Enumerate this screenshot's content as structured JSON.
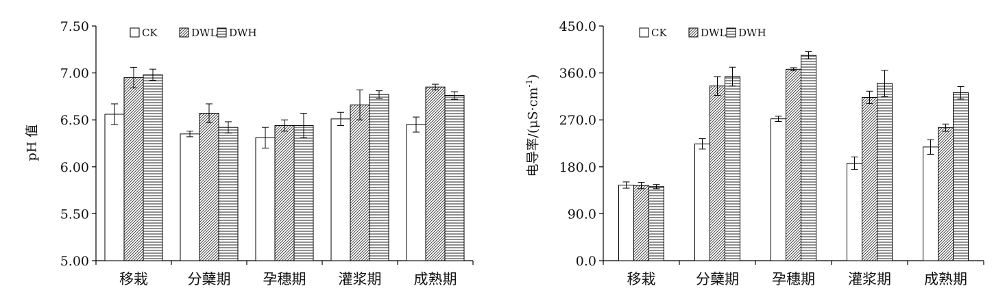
{
  "chart_data": [
    {
      "type": "bar",
      "ylabel": "pH 值",
      "ylim": [
        5.0,
        7.5
      ],
      "yticks": [
        "5.00",
        "5.50",
        "6.00",
        "6.50",
        "7.00",
        "7.50"
      ],
      "ytick_values": [
        5.0,
        5.5,
        6.0,
        6.5,
        7.0,
        7.5
      ],
      "categories": [
        "移栽",
        "分蘖期",
        "孕穗期",
        "灌浆期",
        "成熟期"
      ],
      "legend_position": "top-left",
      "grid": false,
      "series": [
        {
          "name": "CK",
          "pattern": "blank",
          "values": [
            6.56,
            6.35,
            6.31,
            6.51,
            6.45
          ],
          "errors": [
            0.11,
            0.03,
            0.11,
            0.07,
            0.08
          ]
        },
        {
          "name": "DWL",
          "pattern": "diagonal",
          "values": [
            6.95,
            6.57,
            6.44,
            6.66,
            6.85
          ],
          "errors": [
            0.11,
            0.1,
            0.06,
            0.16,
            0.03
          ]
        },
        {
          "name": "DWH",
          "pattern": "horizontal",
          "values": [
            6.98,
            6.42,
            6.44,
            6.77,
            6.76
          ],
          "errors": [
            0.06,
            0.06,
            0.13,
            0.04,
            0.04
          ]
        }
      ]
    },
    {
      "type": "bar",
      "ylabel": "电导率/(μS·cm",
      "ylabel_sup": "-1",
      "ylabel_close": ")",
      "ylim": [
        0,
        450
      ],
      "yticks": [
        "0.0",
        "90.0",
        "180.0",
        "270.0",
        "360.0",
        "450.0"
      ],
      "ytick_values": [
        0,
        90,
        180,
        270,
        360,
        450
      ],
      "categories": [
        "移栽",
        "分蘖期",
        "孕穗期",
        "灌浆期",
        "成熟期"
      ],
      "legend_position": "top-left",
      "grid": false,
      "series": [
        {
          "name": "CK",
          "pattern": "blank",
          "values": [
            145,
            224,
            272,
            187,
            218
          ],
          "errors": [
            6,
            10,
            5,
            12,
            14
          ]
        },
        {
          "name": "DWL",
          "pattern": "diagonal",
          "values": [
            144,
            335,
            367,
            313,
            255
          ],
          "errors": [
            6,
            18,
            3,
            12,
            7
          ]
        },
        {
          "name": "DWH",
          "pattern": "horizontal",
          "values": [
            142,
            353,
            394,
            340,
            322
          ],
          "errors": [
            4,
            18,
            7,
            25,
            12
          ]
        }
      ]
    }
  ]
}
